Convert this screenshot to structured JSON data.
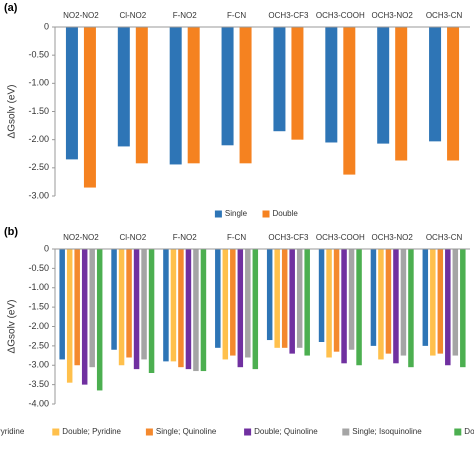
{
  "chart_data": [
    {
      "type": "bar",
      "label": "(a)",
      "y_label": "ΔGsolv (eV)",
      "categories": [
        "NO2-NO2",
        "Cl-NO2",
        "F-NO2",
        "F-CN",
        "OCH3-CF3",
        "OCH3-COOH",
        "OCH3-NO2",
        "OCH3-CN"
      ],
      "series": [
        {
          "name": "Single",
          "color": "#2e75b6",
          "values": [
            -2.35,
            -2.12,
            -2.44,
            -2.1,
            -1.85,
            -2.05,
            -2.07,
            -2.03
          ]
        },
        {
          "name": "Double",
          "color": "#f58220",
          "values": [
            -2.85,
            -2.42,
            -2.42,
            -2.42,
            -2.0,
            -2.62,
            -2.37,
            -2.37
          ]
        }
      ],
      "ylim": [
        -3.0,
        0
      ],
      "yticks": [
        0,
        {
          "value": -0.5,
          "label": "-0.50"
        },
        {
          "value": -1.0,
          "label": "-1.00"
        },
        {
          "value": -1.5,
          "label": "-1.50"
        },
        {
          "value": -2.0,
          "label": "-2.00"
        },
        {
          "value": -2.5,
          "label": "-2.50"
        },
        {
          "value": -3.0,
          "label": "-3.00"
        }
      ],
      "legend": "bottom"
    },
    {
      "type": "bar",
      "label": "(b)",
      "y_label": "ΔGsolv (eV)",
      "categories": [
        "NO2-NO2",
        "Cl-NO2",
        "F-NO2",
        "F-CN",
        "OCH3-CF3",
        "OCH3-COOH",
        "OCH3-NO2",
        "OCH3-CN"
      ],
      "series": [
        {
          "name": "Single; Pyridine",
          "color": "#2e75b6",
          "values": [
            -2.85,
            -2.6,
            -2.9,
            -2.55,
            -2.35,
            -2.4,
            -2.5,
            -2.5
          ]
        },
        {
          "name": "Double; Pyridine",
          "color": "#ffc04c",
          "values": [
            -3.45,
            -3.0,
            -2.9,
            -2.85,
            -2.55,
            -2.8,
            -2.85,
            -2.75
          ]
        },
        {
          "name": "Single; Quinoline",
          "color": "#f4892e",
          "values": [
            -3.0,
            -2.8,
            -3.05,
            -2.75,
            -2.55,
            -2.65,
            -2.7,
            -2.7
          ]
        },
        {
          "name": "Double; Quinoline",
          "color": "#7030a0",
          "values": [
            -3.5,
            -3.1,
            -3.1,
            -3.05,
            -2.7,
            -2.95,
            -2.95,
            -3.0
          ]
        },
        {
          "name": "Single; Isoquinoline",
          "color": "#a5a5a5",
          "values": [
            -3.05,
            -2.85,
            -3.15,
            -2.8,
            -2.55,
            -2.6,
            -2.75,
            -2.75
          ]
        },
        {
          "name": "Double; Isoquinoline",
          "color": "#4caf50",
          "values": [
            -3.65,
            -3.2,
            -3.15,
            -3.1,
            -2.75,
            -3.0,
            -3.05,
            -3.05
          ]
        }
      ],
      "ylim": [
        -4.0,
        0
      ],
      "yticks": [
        0,
        {
          "value": -0.5,
          "label": "-0.50"
        },
        {
          "value": -1.0,
          "label": "-1.00"
        },
        {
          "value": -1.5,
          "label": "-1.50"
        },
        {
          "value": -2.0,
          "label": "-2.00"
        },
        {
          "value": -2.5,
          "label": "-2.50"
        },
        {
          "value": -3.0,
          "label": "-3.00"
        },
        {
          "value": -3.5,
          "label": "-3.50"
        },
        {
          "value": -4.0,
          "label": "-4.00"
        }
      ],
      "legend": "bottom"
    }
  ]
}
